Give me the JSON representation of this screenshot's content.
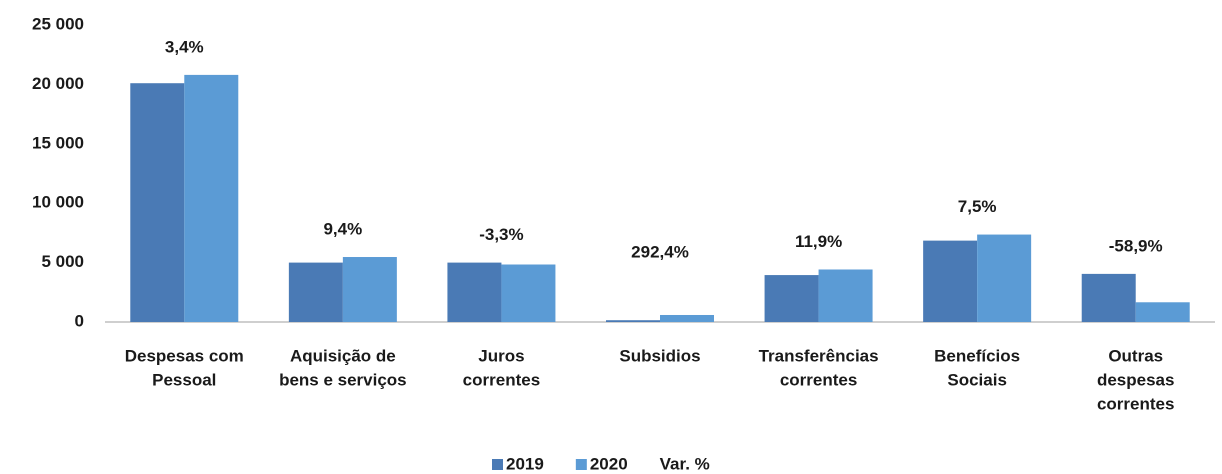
{
  "chart_data": {
    "type": "bar",
    "categories": [
      [
        "Despesas com",
        "Pessoal"
      ],
      [
        "Aquisição de",
        "bens e serviços"
      ],
      [
        "Juros",
        "correntes"
      ],
      [
        "Subsidios"
      ],
      [
        "Transferências",
        "correntes"
      ],
      [
        "Benefícios",
        "Sociais"
      ],
      [
        "Outras",
        "despesas",
        "correntes"
      ]
    ],
    "series": [
      {
        "name": "2019",
        "color": "#4a7ab5",
        "values": [
          20100,
          5000,
          5000,
          150,
          3950,
          6850,
          4050
        ]
      },
      {
        "name": "2020",
        "color": "#5b9bd5",
        "values": [
          20800,
          5470,
          4840,
          590,
          4420,
          7360,
          1660
        ]
      },
      {
        "name": "Var. %",
        "values": [
          3.4,
          9.4,
          -3.3,
          292.4,
          11.9,
          7.5,
          -58.9
        ],
        "value_labels": [
          "3,4%",
          "9,4%",
          "-3,3%",
          "292,4%",
          "11,9%",
          "7,5%",
          "-58,9%"
        ]
      }
    ],
    "ylim": [
      0,
      25000
    ],
    "yticks": [
      0,
      {
        "value": 5000,
        "label": "5 000"
      },
      {
        "value": 10000,
        "label": "10 000"
      },
      {
        "value": 15000,
        "label": "15 000"
      },
      {
        "value": 20000,
        "label": "20 000"
      },
      {
        "value": 25000,
        "label": "25 000"
      }
    ],
    "grid": false
  }
}
